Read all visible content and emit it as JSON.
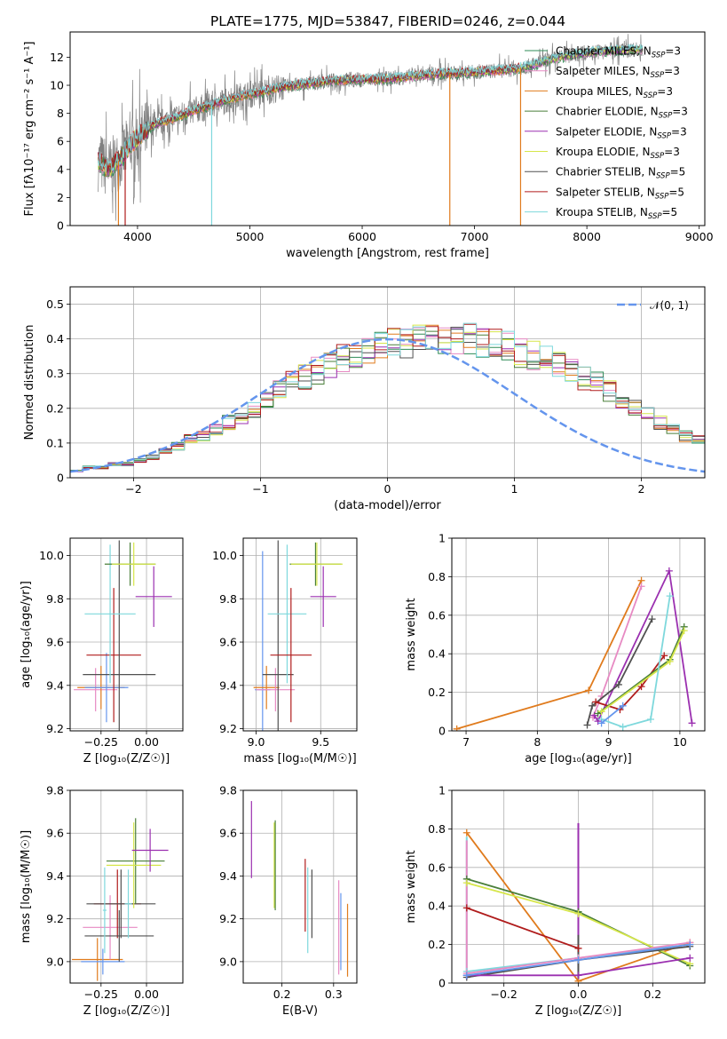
{
  "title": "PLATE=1775, MJD=53847, FIBERID=0246, z=0.044",
  "chart_data": [
    {
      "id": "spectrum",
      "type": "line",
      "xlabel": "wavelength [Angstrom, rest frame]",
      "ylabel": "Flux [fλ10⁻¹⁷ erg cm⁻² s⁻¹ A⁻¹]",
      "xlim": [
        3400,
        9050
      ],
      "ylim": [
        0,
        13.8
      ],
      "xticks": [
        4000,
        5000,
        6000,
        7000,
        8000,
        9000
      ],
      "yticks": [
        0,
        2,
        4,
        6,
        8,
        10,
        12
      ],
      "grid": false,
      "legend_position": "top-right",
      "series": [
        {
          "name": "Chabrier MILES, N",
          "sub": "SSP",
          "suffix": "=3",
          "color": "#2e8b57"
        },
        {
          "name": "Salpeter MILES, N",
          "sub": "SSP",
          "suffix": "=3",
          "color": "#e78ac3"
        },
        {
          "name": "Kroupa MILES, N",
          "sub": "SSP",
          "suffix": "=3",
          "color": "#e07b1d"
        },
        {
          "name": "Chabrier ELODIE, N",
          "sub": "SSP",
          "suffix": "=3",
          "color": "#4a7f3a"
        },
        {
          "name": "Salpeter ELODIE, N",
          "sub": "SSP",
          "suffix": "=3",
          "color": "#9b30b0"
        },
        {
          "name": "Kroupa ELODIE, N",
          "sub": "SSP",
          "suffix": "=3",
          "color": "#d6e64a"
        },
        {
          "name": "Chabrier STELIB, N",
          "sub": "SSP",
          "suffix": "=5",
          "color": "#505050"
        },
        {
          "name": "Salpeter STELIB, N",
          "sub": "SSP",
          "suffix": "=5",
          "color": "#b01c1c"
        },
        {
          "name": "Kroupa STELIB, N",
          "sub": "SSP",
          "suffix": "=5",
          "color": "#7ed8dc"
        }
      ],
      "data_color": "#808080",
      "continuum": {
        "x": [
          3650,
          3750,
          3850,
          3950,
          4050,
          4150,
          4300,
          4500,
          4700,
          4900,
          5100,
          5300,
          5500,
          5700,
          5900,
          6100,
          6300,
          6500,
          6700,
          6900,
          7100,
          7300,
          7500,
          7700,
          7900,
          8100,
          8300,
          8500
        ],
        "y": [
          4.6,
          4.0,
          4.8,
          5.9,
          6.6,
          7.2,
          7.6,
          8.2,
          8.7,
          9.2,
          9.5,
          9.9,
          10.1,
          10.3,
          10.4,
          10.4,
          10.5,
          10.7,
          10.8,
          10.9,
          11.0,
          11.1,
          11.4,
          11.9,
          12.2,
          12.4,
          12.5,
          12.6
        ]
      },
      "dropouts_x": [
        3830,
        3890,
        4660,
        6780,
        7410
      ]
    },
    {
      "id": "residuals",
      "type": "step",
      "xlabel": "(data-model)/error",
      "ylabel": "Normed distribution",
      "xlim": [
        -2.5,
        2.5
      ],
      "ylim": [
        0,
        0.55
      ],
      "xticks": [
        -2,
        -1,
        0,
        1,
        2
      ],
      "xtick_labels": [
        "−2",
        "−1",
        "0",
        "1",
        "2"
      ],
      "yticks": [
        0.0,
        0.1,
        0.2,
        0.3,
        0.4,
        0.5
      ],
      "grid": true,
      "legend_position": "top-right",
      "reference": {
        "name": "𝒩(0, 1)",
        "color": "#6495ed"
      },
      "bin_width": 0.1,
      "bin_start": -2.5,
      "bin_values": [
        0.02,
        0.03,
        0.03,
        0.04,
        0.04,
        0.05,
        0.06,
        0.08,
        0.09,
        0.11,
        0.12,
        0.14,
        0.16,
        0.18,
        0.2,
        0.22,
        0.25,
        0.27,
        0.29,
        0.31,
        0.32,
        0.34,
        0.35,
        0.36,
        0.38,
        0.39,
        0.39,
        0.4,
        0.4,
        0.4,
        0.4,
        0.4,
        0.39,
        0.39,
        0.38,
        0.36,
        0.35,
        0.34,
        0.32,
        0.31,
        0.29,
        0.27,
        0.25,
        0.22,
        0.2,
        0.18,
        0.16,
        0.14,
        0.12,
        0.11
      ],
      "bin_values_right": [
        0.09,
        0.08,
        0.06,
        0.05,
        0.04,
        0.04,
        0.03,
        0.03,
        0.02,
        0.02
      ]
    },
    {
      "id": "age-vs-Z",
      "type": "errorbar",
      "xlabel": "Z [log₁₀(Z/Z☉)]",
      "ylabel": "age  [log₁₀(age/yr)]",
      "xlim": [
        -0.42,
        0.2
      ],
      "ylim": [
        9.19,
        10.08
      ],
      "xticks": [
        -0.25,
        0.0
      ],
      "xtick_labels": [
        "−0.25",
        "0.00"
      ],
      "yticks": [
        9.2,
        9.4,
        9.6,
        9.8,
        10.0
      ],
      "ytick_labels": [
        "9.2",
        "9.4",
        "9.6",
        "9.8",
        "10.0"
      ],
      "grid": true,
      "points": [
        {
          "x": -0.28,
          "xerr": 0.12,
          "y": 9.38,
          "yerr": 0.1,
          "color": "#e78ac3"
        },
        {
          "x": -0.25,
          "xerr": 0.13,
          "y": 9.39,
          "yerr": 0.1,
          "color": "#e07b1d"
        },
        {
          "x": -0.22,
          "xerr": 0.12,
          "y": 9.39,
          "yerr": 0.16,
          "color": "#6495ed"
        },
        {
          "x": -0.18,
          "xerr": 0.15,
          "y": 9.54,
          "yerr": 0.31,
          "color": "#b01c1c"
        },
        {
          "x": -0.15,
          "xerr": 0.2,
          "y": 9.45,
          "yerr": 0.62,
          "color": "#505050"
        },
        {
          "x": -0.2,
          "xerr": 0.14,
          "y": 9.73,
          "yerr": 0.32,
          "color": "#7ed8dc"
        },
        {
          "x": -0.09,
          "xerr": 0.14,
          "y": 9.96,
          "yerr": 0.1,
          "color": "#4a7f3a"
        },
        {
          "x": -0.07,
          "xerr": 0.12,
          "y": 9.96,
          "yerr": 0.1,
          "color": "#d6e64a"
        },
        {
          "x": 0.04,
          "xerr": 0.1,
          "y": 9.81,
          "yerr": 0.14,
          "color": "#9b30b0"
        }
      ]
    },
    {
      "id": "age-vs-mass",
      "type": "errorbar",
      "xlabel": "mass [log₁₀(M/M☉)]",
      "ylabel": "",
      "xlim": [
        8.9,
        9.78
      ],
      "ylim": [
        9.19,
        10.08
      ],
      "xticks": [
        9.0,
        9.5
      ],
      "xtick_labels": [
        "9.0",
        "9.5"
      ],
      "yticks": [
        9.2,
        9.4,
        9.6,
        9.8,
        10.0
      ],
      "ytick_labels": [
        "9.2",
        "9.4",
        "9.6",
        "9.8",
        "10.0"
      ],
      "grid": true,
      "points": [
        {
          "x": 9.05,
          "xerr": 0.06,
          "y": 9.38,
          "yerr": 0.64,
          "color": "#6495ed"
        },
        {
          "x": 9.08,
          "xerr": 0.1,
          "y": 9.39,
          "yerr": 0.1,
          "color": "#e07b1d"
        },
        {
          "x": 9.15,
          "xerr": 0.15,
          "y": 9.38,
          "yerr": 0.1,
          "color": "#e78ac3"
        },
        {
          "x": 9.17,
          "xerr": 0.12,
          "y": 9.45,
          "yerr": 0.62,
          "color": "#505050"
        },
        {
          "x": 9.24,
          "xerr": 0.15,
          "y": 9.73,
          "yerr": 0.32,
          "color": "#7ed8dc"
        },
        {
          "x": 9.27,
          "xerr": 0.16,
          "y": 9.54,
          "yerr": 0.31,
          "color": "#b01c1c"
        },
        {
          "x": 9.46,
          "xerr": 0.2,
          "y": 9.96,
          "yerr": 0.1,
          "color": "#4a7f3a"
        },
        {
          "x": 9.47,
          "xerr": 0.2,
          "y": 9.96,
          "yerr": 0.1,
          "color": "#d6e64a"
        },
        {
          "x": 9.52,
          "xerr": 0.1,
          "y": 9.81,
          "yerr": 0.14,
          "color": "#9b30b0"
        }
      ]
    },
    {
      "id": "massweight-vs-age",
      "type": "line",
      "xlabel": "age  [log₁₀(age/yr)]",
      "ylabel": "mass weight",
      "xlim": [
        6.8,
        10.35
      ],
      "ylim": [
        0,
        1.0
      ],
      "xticks": [
        7,
        8,
        9,
        10
      ],
      "yticks": [
        0.0,
        0.2,
        0.4,
        0.6,
        0.8,
        1.0
      ],
      "grid": true,
      "series": [
        {
          "color": "#e07b1d",
          "x": [
            6.87,
            8.72,
            9.46
          ],
          "y": [
            0.01,
            0.21,
            0.78
          ]
        },
        {
          "color": "#e78ac3",
          "x": [
            8.78,
            8.9,
            9.46
          ],
          "y": [
            0.07,
            0.18,
            0.75
          ]
        },
        {
          "color": "#9b30b0",
          "x": [
            8.8,
            8.85,
            9.85,
            10.17
          ],
          "y": [
            0.08,
            0.05,
            0.83,
            0.04
          ]
        },
        {
          "color": "#505050",
          "x": [
            8.7,
            8.77,
            9.14,
            9.61
          ],
          "y": [
            0.03,
            0.13,
            0.24,
            0.58
          ]
        },
        {
          "color": "#b01c1c",
          "x": [
            8.82,
            9.16,
            9.46,
            9.78
          ],
          "y": [
            0.15,
            0.11,
            0.23,
            0.39
          ]
        },
        {
          "color": "#4a7f3a",
          "x": [
            8.85,
            9.86,
            10.06
          ],
          "y": [
            0.09,
            0.37,
            0.54
          ]
        },
        {
          "color": "#d6e64a",
          "x": [
            8.9,
            9.86,
            10.06
          ],
          "y": [
            0.1,
            0.36,
            0.52
          ]
        },
        {
          "color": "#7ed8dc",
          "x": [
            8.9,
            9.2,
            9.59,
            9.86
          ],
          "y": [
            0.06,
            0.02,
            0.06,
            0.7
          ]
        },
        {
          "color": "#6495ed",
          "x": [
            8.9,
            9.2
          ],
          "y": [
            0.04,
            0.13
          ]
        }
      ]
    },
    {
      "id": "mass-vs-Z",
      "type": "errorbar",
      "xlabel": "Z [log₁₀(Z/Z☉)]",
      "ylabel": "mass [log₁₀(M/M☉)]",
      "xlim": [
        -0.42,
        0.2
      ],
      "ylim": [
        8.9,
        9.8
      ],
      "xticks": [
        -0.25,
        0.0
      ],
      "xtick_labels": [
        "−0.25",
        "0.00"
      ],
      "yticks": [
        9.0,
        9.2,
        9.4,
        9.6,
        9.8
      ],
      "ytick_labels": [
        "9.0",
        "9.2",
        "9.4",
        "9.6",
        "9.8"
      ],
      "grid": true,
      "points": [
        {
          "x": -0.27,
          "xerr": 0.14,
          "y": 9.01,
          "yerr": 0.1,
          "color": "#e07b1d"
        },
        {
          "x": -0.24,
          "xerr": 0.12,
          "y": 9.0,
          "yerr": 0.06,
          "color": "#6495ed"
        },
        {
          "x": -0.2,
          "xerr": 0.15,
          "y": 9.16,
          "yerr": 0.15,
          "color": "#e78ac3"
        },
        {
          "x": -0.16,
          "xerr": 0.13,
          "y": 9.27,
          "yerr": 0.16,
          "color": "#b01c1c"
        },
        {
          "x": -0.15,
          "xerr": 0.19,
          "y": 9.12,
          "yerr": 0.12,
          "color": "#505050"
        },
        {
          "x": -0.14,
          "xerr": 0.19,
          "y": 9.27,
          "yerr": 0.16,
          "color": "#505050"
        },
        {
          "x": -0.23,
          "xerr": 0.01,
          "y": 9.24,
          "yerr": 0.2,
          "color": "#7ed8dc"
        },
        {
          "x": -0.1,
          "xerr": 0.02,
          "y": 9.27,
          "yerr": 0.16,
          "color": "#7ed8dc"
        },
        {
          "x": -0.06,
          "xerr": 0.16,
          "y": 9.47,
          "yerr": 0.2,
          "color": "#4a7f3a"
        },
        {
          "x": -0.07,
          "xerr": 0.15,
          "y": 9.45,
          "yerr": 0.2,
          "color": "#d6e64a"
        },
        {
          "x": 0.02,
          "xerr": 0.1,
          "y": 9.52,
          "yerr": 0.1,
          "color": "#9b30b0"
        }
      ]
    },
    {
      "id": "mass-vs-EBV",
      "type": "errorbar",
      "xlabel": "E(B-V)",
      "ylabel": "",
      "xlim": [
        0.125,
        0.345
      ],
      "ylim": [
        8.9,
        9.8
      ],
      "xticks": [
        0.2,
        0.3
      ],
      "xtick_labels": [
        "0.2",
        "0.3"
      ],
      "yticks": [
        9.0,
        9.2,
        9.4,
        9.6,
        9.8
      ],
      "ytick_labels": [
        "9.0",
        "9.2",
        "9.4",
        "9.6",
        "9.8"
      ],
      "grid": true,
      "points": [
        {
          "x": 0.141,
          "y": 9.57,
          "yerr": 0.18,
          "color": "#9b30b0"
        },
        {
          "x": 0.185,
          "y": 9.45,
          "yerr": 0.2,
          "color": "#d6e64a"
        },
        {
          "x": 0.187,
          "y": 9.45,
          "yerr": 0.21,
          "color": "#4a7f3a"
        },
        {
          "x": 0.245,
          "y": 9.31,
          "yerr": 0.17,
          "color": "#b01c1c"
        },
        {
          "x": 0.25,
          "y": 9.24,
          "yerr": 0.2,
          "color": "#7ed8dc"
        },
        {
          "x": 0.258,
          "y": 9.27,
          "yerr": 0.16,
          "color": "#505050"
        },
        {
          "x": 0.31,
          "y": 9.16,
          "yerr": 0.22,
          "color": "#e78ac3"
        },
        {
          "x": 0.314,
          "y": 9.14,
          "yerr": 0.18,
          "color": "#6495ed"
        },
        {
          "x": 0.327,
          "y": 9.1,
          "yerr": 0.17,
          "color": "#e07b1d"
        }
      ]
    },
    {
      "id": "massweight-vs-Z",
      "type": "line",
      "xlabel": "Z [log₁₀(Z/Z☉)]",
      "ylabel": "mass weight",
      "xlim": [
        -0.34,
        0.34
      ],
      "ylim": [
        0,
        1.0
      ],
      "xticks": [
        -0.2,
        0.0,
        0.2
      ],
      "xtick_labels": [
        "−0.2",
        "0.0",
        "0.2"
      ],
      "yticks": [
        0.0,
        0.2,
        0.4,
        0.6,
        0.8,
        1.0
      ],
      "grid": true,
      "series": [
        {
          "color": "#e07b1d",
          "x": [
            -0.3,
            0.0,
            0.3
          ],
          "y": [
            0.78,
            0.01,
            0.21
          ]
        },
        {
          "color": "#4a7f3a",
          "x": [
            -0.3,
            0.0,
            0.3
          ],
          "y": [
            0.54,
            0.37,
            0.09
          ]
        },
        {
          "color": "#d6e64a",
          "x": [
            -0.3,
            0.0,
            0.3
          ],
          "y": [
            0.52,
            0.36,
            0.1
          ]
        },
        {
          "color": "#b01c1c",
          "x": [
            -0.3,
            0.0
          ],
          "y": [
            0.39,
            0.18
          ]
        },
        {
          "color": "#7ed8dc",
          "x": [
            -0.3,
            0.0,
            0.3
          ],
          "y": [
            0.06,
            0.13,
            0.2
          ]
        },
        {
          "color": "#505050",
          "x": [
            -0.3,
            0.0,
            0.3
          ],
          "y": [
            0.03,
            0.12,
            0.19
          ]
        },
        {
          "color": "#9b30b0",
          "x": [
            -0.3,
            0.0,
            0.3
          ],
          "y": [
            0.04,
            0.04,
            0.13
          ]
        },
        {
          "color": "#e78ac3",
          "x": [
            -0.3,
            0.0,
            0.3
          ],
          "y": [
            0.05,
            0.13,
            0.21
          ]
        },
        {
          "color": "#6495ed",
          "x": [
            -0.3,
            0.0,
            0.3
          ],
          "y": [
            0.04,
            0.12,
            0.2
          ]
        }
      ],
      "stems": [
        {
          "x": -0.3,
          "from": 0.02,
          "to": 0.76,
          "color": "#7ed8dc"
        },
        {
          "x": -0.3,
          "from": 0.02,
          "to": 0.74,
          "color": "#e78ac3"
        },
        {
          "x": 0.0,
          "from": 0.02,
          "to": 0.83,
          "color": "#9b30b0"
        },
        {
          "x": 0.0,
          "from": 0.02,
          "to": 0.25,
          "color": "#505050"
        }
      ]
    }
  ]
}
